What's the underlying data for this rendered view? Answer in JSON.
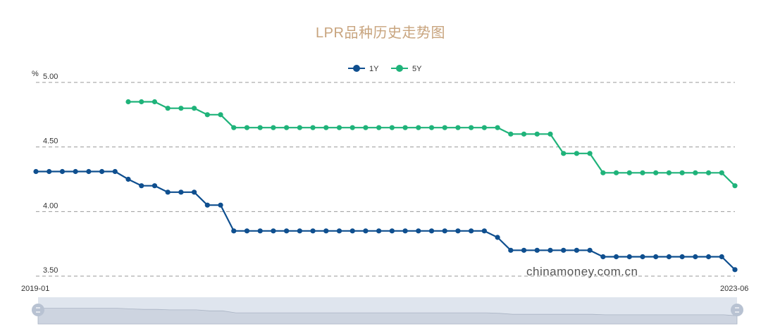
{
  "colors": {
    "title": "#c8a47e",
    "series_1y": "#0f4f8f",
    "series_5y": "#1fb37a",
    "grid": "#999999",
    "slider_bg": "#dfe5ee",
    "slider_fill": "#cdd4e0",
    "slider_handle": "#b8c2d2"
  },
  "chart_data": {
    "type": "line",
    "title": "LPR品种历史走势图",
    "ylabel": "%",
    "ylim": [
      3.5,
      5.0
    ],
    "yticks": [
      "5.00",
      "4.50",
      "4.00",
      "3.50"
    ],
    "x_start_label": "2019-01",
    "x_end_label": "2023-06",
    "grid": true,
    "legend_position": "top-center",
    "x": [
      "2019-01",
      "2019-02",
      "2019-03",
      "2019-04",
      "2019-05",
      "2019-06",
      "2019-07",
      "2019-08",
      "2019-09",
      "2019-10",
      "2019-11",
      "2019-12",
      "2020-01",
      "2020-02",
      "2020-03",
      "2020-04",
      "2020-05",
      "2020-06",
      "2020-07",
      "2020-08",
      "2020-09",
      "2020-10",
      "2020-11",
      "2020-12",
      "2021-01",
      "2021-02",
      "2021-03",
      "2021-04",
      "2021-05",
      "2021-06",
      "2021-07",
      "2021-08",
      "2021-09",
      "2021-10",
      "2021-11",
      "2021-12",
      "2022-01",
      "2022-02",
      "2022-03",
      "2022-04",
      "2022-05",
      "2022-06",
      "2022-07",
      "2022-08",
      "2022-09",
      "2022-10",
      "2022-11",
      "2022-12",
      "2023-01",
      "2023-02",
      "2023-03",
      "2023-04",
      "2023-05",
      "2023-06"
    ],
    "series": [
      {
        "name": "1Y",
        "values": [
          4.31,
          4.31,
          4.31,
          4.31,
          4.31,
          4.31,
          4.31,
          4.25,
          4.2,
          4.2,
          4.15,
          4.15,
          4.15,
          4.05,
          4.05,
          3.85,
          3.85,
          3.85,
          3.85,
          3.85,
          3.85,
          3.85,
          3.85,
          3.85,
          3.85,
          3.85,
          3.85,
          3.85,
          3.85,
          3.85,
          3.85,
          3.85,
          3.85,
          3.85,
          3.85,
          3.8,
          3.7,
          3.7,
          3.7,
          3.7,
          3.7,
          3.7,
          3.7,
          3.65,
          3.65,
          3.65,
          3.65,
          3.65,
          3.65,
          3.65,
          3.65,
          3.65,
          3.65,
          3.55
        ]
      },
      {
        "name": "5Y",
        "values": [
          null,
          null,
          null,
          null,
          null,
          null,
          null,
          4.85,
          4.85,
          4.85,
          4.8,
          4.8,
          4.8,
          4.75,
          4.75,
          4.65,
          4.65,
          4.65,
          4.65,
          4.65,
          4.65,
          4.65,
          4.65,
          4.65,
          4.65,
          4.65,
          4.65,
          4.65,
          4.65,
          4.65,
          4.65,
          4.65,
          4.65,
          4.65,
          4.65,
          4.65,
          4.6,
          4.6,
          4.6,
          4.6,
          4.45,
          4.45,
          4.45,
          4.3,
          4.3,
          4.3,
          4.3,
          4.3,
          4.3,
          4.3,
          4.3,
          4.3,
          4.3,
          4.2
        ]
      }
    ],
    "watermark": "chinamoney.com.cn",
    "data_zoom": {
      "start": 0,
      "end": 100
    }
  }
}
